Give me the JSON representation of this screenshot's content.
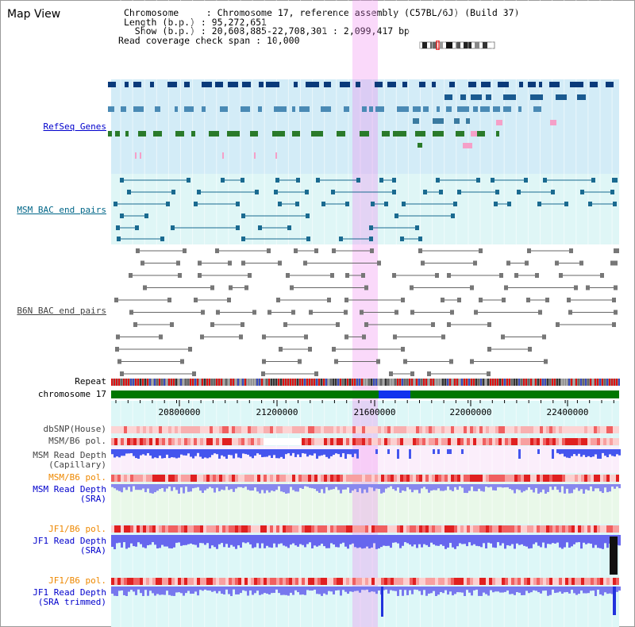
{
  "app": {
    "title": "Map View"
  },
  "info": {
    "chromosome_key": "Chromosome",
    "chromosome_val": "Chromosome 17, reference assembly (C57BL/6J) (Build 37)",
    "length_key": "Length (b.p.)",
    "length_val": "95,272,651",
    "show_key": "Show (b.p.)",
    "show_val": "20,608,885-22,708,301 : 2,099,417 bp",
    "span_key": "Read coverage check span",
    "span_val": "10,000"
  },
  "tracks": {
    "refseq": {
      "label": "RefSeq Genes",
      "color": "#0000cc"
    },
    "msm_bac": {
      "label": "MSM BAC end pairs",
      "color": "#006688"
    },
    "b6n_bac": {
      "label": "B6N BAC end pairs",
      "color": "#444444"
    },
    "repeat": {
      "label": "Repeat"
    },
    "chrom": {
      "label": "chromosome 17"
    },
    "dbsnp": {
      "label": "dbSNP(House)"
    },
    "msm_b6_pol_1": {
      "label": "MSM/B6 pol."
    },
    "msm_read_cap": {
      "label1": "MSM Read Depth",
      "label2": "(Capillary)"
    },
    "msm_b6_pol_2": {
      "label": "MSM/B6 pol.",
      "color": "#ee8800"
    },
    "msm_read_sra": {
      "label1": "MSM Read Depth",
      "label2": "(SRA)"
    },
    "jf1_b6_pol_1": {
      "label": "JF1/B6 pol.",
      "color": "#ee8800"
    },
    "jf1_read_sra": {
      "label1": "JF1 Read Depth",
      "label2": "(SRA)"
    },
    "jf1_b6_pol_2": {
      "label": "JF1/B6 pol.",
      "color": "#ee8800"
    },
    "jf1_read_trim": {
      "label1": "JF1 Read Depth",
      "label2": "(SRA trimmed)"
    }
  },
  "axis": {
    "ticks": [
      "20800000",
      "21200000",
      "21600000",
      "22000000",
      "22400000"
    ]
  }
}
